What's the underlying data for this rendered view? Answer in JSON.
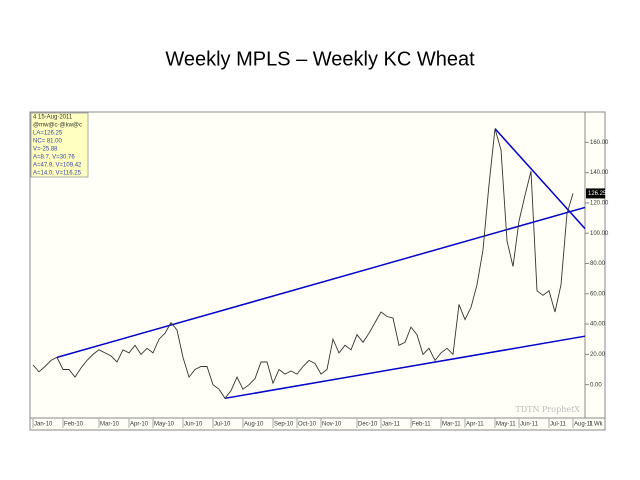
{
  "chart_data": {
    "type": "line",
    "title": "Weekly MPLS – Weekly KC Wheat",
    "info_box": [
      "4 15-Aug-2011",
      "@mw@c-@kw@c",
      "LA=126.25",
      "NC= 81.00",
      "V=-25.88",
      "A=8.7, V=30.76",
      "A=47.9, V=109.42",
      "A=14.0, V=116.25"
    ],
    "watermark": "TDTN ProphetX",
    "period_label": "1 Wk",
    "categories": [
      "Jan-10",
      null,
      null,
      null,
      null,
      "Feb-10",
      null,
      null,
      null,
      null,
      null,
      "Mar-10",
      null,
      null,
      null,
      null,
      "Apr-10",
      null,
      null,
      null,
      "May-10",
      null,
      null,
      null,
      null,
      "Jun-10",
      null,
      null,
      null,
      null,
      "Jul-10",
      null,
      null,
      null,
      null,
      "Aug-10",
      null,
      null,
      null,
      null,
      "Sep-10",
      null,
      null,
      null,
      "Oct-10",
      null,
      null,
      null,
      "Nov-10",
      null,
      null,
      null,
      null,
      null,
      "Dec-10",
      null,
      null,
      null,
      "Jan-11",
      null,
      null,
      null,
      null,
      "Feb-11",
      null,
      null,
      null,
      null,
      "Mar-11",
      null,
      null,
      null,
      "Apr-11",
      null,
      null,
      null,
      null,
      "May-11",
      null,
      null,
      null,
      "Jun-11",
      null,
      null,
      null,
      null,
      "Jul-11",
      null,
      null,
      null,
      "Aug-11"
    ],
    "series": [
      {
        "color": "#333333",
        "values": [
          13,
          8.5,
          12,
          16,
          18,
          10,
          10,
          5,
          11,
          16,
          20,
          23,
          21,
          19,
          15,
          23,
          21,
          26,
          20,
          24,
          21,
          30,
          34,
          41,
          36,
          18,
          5,
          10,
          12,
          12,
          0,
          -3,
          -9,
          -4,
          5,
          -3,
          0,
          4,
          15,
          15,
          1,
          10,
          7,
          9,
          7,
          12,
          16,
          14,
          7,
          10,
          30,
          21,
          26,
          23,
          33,
          28,
          34,
          41,
          48,
          45,
          44,
          26,
          28,
          38,
          33,
          20,
          24,
          16,
          21,
          24,
          20,
          53,
          43,
          51,
          66,
          89,
          132,
          169,
          155,
          95,
          78,
          108,
          125,
          141,
          62,
          59,
          62,
          48,
          66,
          113,
          126.25
        ]
      }
    ],
    "trendlines": [
      {
        "color": "#0000cc",
        "x": [
          4,
          92
        ],
        "values": [
          18,
          117
        ]
      },
      {
        "color": "#0000cc",
        "x": [
          32,
          92
        ],
        "values": [
          -9,
          32
        ]
      },
      {
        "color": "#0000cc",
        "x": [
          77,
          92
        ],
        "values": [
          169,
          103
        ]
      }
    ],
    "xlim": [
      -0.5,
      92
    ],
    "ylim": [
      -22,
      180
    ],
    "yticks": [
      {
        "value": 0,
        "label": "0.00"
      },
      {
        "value": 20,
        "label": "20.00"
      },
      {
        "value": 40,
        "label": "40.00"
      },
      {
        "value": 60,
        "label": "60.00"
      },
      {
        "value": 80,
        "label": "80.00"
      },
      {
        "value": 100,
        "label": "100.00"
      },
      {
        "value": 120,
        "label": "120.00"
      },
      {
        "value": 140,
        "label": "140.00"
      },
      {
        "value": 160,
        "label": "160.00"
      }
    ],
    "y_axis_side": "right"
  }
}
